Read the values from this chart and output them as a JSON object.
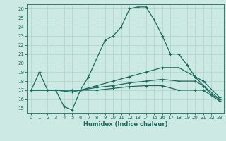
{
  "xlabel": "Humidex (Indice chaleur)",
  "bg_color": "#cceae3",
  "grid_color": "#b0d8ce",
  "line_color": "#1a6b5e",
  "xlim": [
    -0.5,
    23.5
  ],
  "ylim": [
    14.5,
    26.5
  ],
  "yticks": [
    15,
    16,
    17,
    18,
    19,
    20,
    21,
    22,
    23,
    24,
    25,
    26
  ],
  "xticks": [
    0,
    1,
    2,
    3,
    4,
    5,
    6,
    7,
    8,
    9,
    10,
    11,
    12,
    13,
    14,
    15,
    16,
    17,
    18,
    19,
    20,
    21,
    22,
    23
  ],
  "lines": [
    {
      "x": [
        0,
        1,
        2,
        3,
        4,
        5,
        6,
        7,
        8,
        9,
        10,
        11,
        12,
        13,
        14,
        15,
        16,
        17,
        18,
        19,
        20,
        21,
        22,
        23
      ],
      "y": [
        17,
        19,
        17,
        17,
        15.2,
        14.8,
        17,
        18.5,
        20.5,
        22.5,
        23.0,
        24.0,
        26.0,
        26.2,
        26.2,
        24.8,
        23.0,
        21.0,
        21.0,
        19.8,
        18.5,
        17.5,
        16.5,
        16.0
      ]
    },
    {
      "x": [
        0,
        3,
        5,
        6,
        8,
        10,
        12,
        14,
        16,
        18,
        20,
        21,
        23
      ],
      "y": [
        17,
        17,
        17,
        17,
        17.5,
        18.0,
        18.5,
        19.0,
        19.5,
        19.5,
        18.5,
        18.0,
        16.2
      ]
    },
    {
      "x": [
        0,
        3,
        5,
        6,
        8,
        10,
        12,
        14,
        16,
        18,
        20,
        21,
        23
      ],
      "y": [
        17,
        17,
        17,
        17,
        17.3,
        17.5,
        17.8,
        18.0,
        18.2,
        18.0,
        18.0,
        17.5,
        16.0
      ]
    },
    {
      "x": [
        0,
        3,
        5,
        6,
        8,
        10,
        12,
        14,
        16,
        18,
        20,
        21,
        23
      ],
      "y": [
        17,
        17,
        16.8,
        17,
        17.0,
        17.2,
        17.4,
        17.5,
        17.5,
        17.0,
        17.0,
        17.0,
        15.8
      ]
    }
  ]
}
